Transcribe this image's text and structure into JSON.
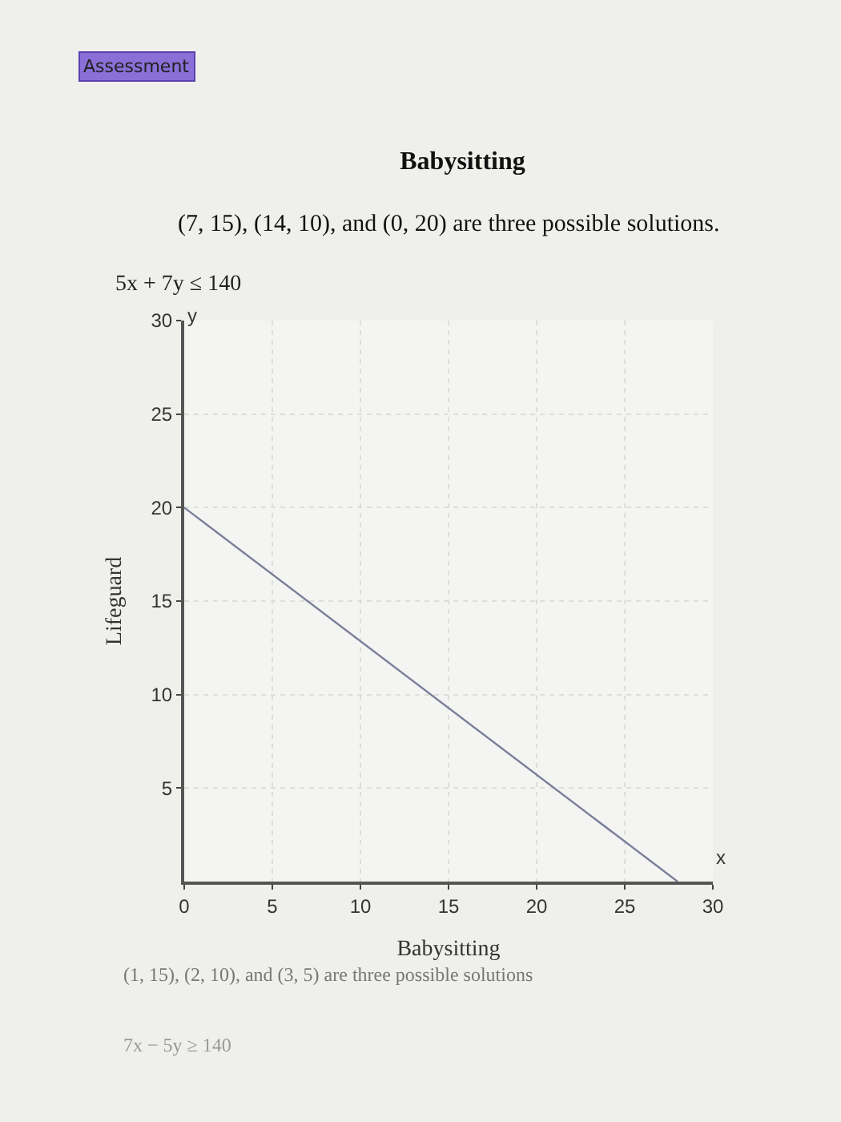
{
  "chart_data": {
    "type": "line",
    "title": "Babysitting",
    "subtitle": "(7, 15), (14, 10), and (0, 20) are three possible solutions.",
    "xlabel": "Babysitting",
    "ylabel": "Lifeguard",
    "annotations": [
      "Assessment",
      "5x + 7y ≤ 140",
      "x",
      "y",
      "(1, 15), (2, 10), and (3, 5) are three possible solutions",
      "7x − 5y ≥ 140"
    ],
    "x": [
      0,
      28
    ],
    "series": [
      {
        "color": "#7a7f99",
        "values": [
          20,
          0
        ]
      }
    ],
    "xlim": [
      0,
      30
    ],
    "ylim": [
      0,
      30
    ],
    "xticks": [
      0,
      5,
      10,
      15,
      20,
      25,
      30
    ],
    "yticks": [
      5,
      10,
      15,
      20,
      25,
      30
    ],
    "grid": true,
    "legend": false,
    "marker": "none",
    "line_style": "solid"
  }
}
